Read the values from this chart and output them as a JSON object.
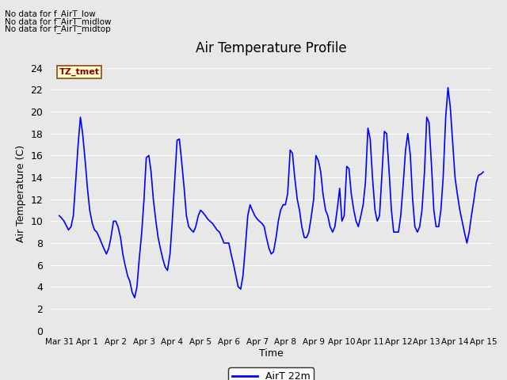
{
  "title": "Air Temperature Profile",
  "xlabel": "Time",
  "ylabel": "Air Temperature (C)",
  "legend_label": "AirT 22m",
  "line_color": "#0000FF",
  "background_color": "#E8E8E8",
  "ylim": [
    0,
    25
  ],
  "yticks": [
    0,
    2,
    4,
    6,
    8,
    10,
    12,
    14,
    16,
    18,
    20,
    22,
    24
  ],
  "annotation_texts": [
    "No data for f_AirT_low",
    "No data for f_AirT_midlow",
    "No data for f_AirT_midtop"
  ],
  "tz_label": "TZ_tmet",
  "x_data": [
    0.0,
    0.08,
    0.17,
    0.25,
    0.33,
    0.42,
    0.5,
    0.58,
    0.67,
    0.75,
    0.83,
    0.92,
    1.0,
    1.08,
    1.17,
    1.25,
    1.33,
    1.42,
    1.5,
    1.58,
    1.67,
    1.75,
    1.83,
    1.92,
    2.0,
    2.08,
    2.17,
    2.25,
    2.33,
    2.42,
    2.5,
    2.58,
    2.67,
    2.75,
    2.83,
    2.92,
    3.0,
    3.08,
    3.17,
    3.25,
    3.33,
    3.42,
    3.5,
    3.58,
    3.67,
    3.75,
    3.83,
    3.92,
    4.0,
    4.08,
    4.17,
    4.25,
    4.33,
    4.42,
    4.5,
    4.58,
    4.67,
    4.75,
    4.83,
    4.92,
    5.0,
    5.08,
    5.17,
    5.25,
    5.33,
    5.42,
    5.5,
    5.58,
    5.67,
    5.75,
    5.83,
    5.92,
    6.0,
    6.08,
    6.17,
    6.25,
    6.33,
    6.42,
    6.5,
    6.58,
    6.67,
    6.75,
    6.83,
    6.92,
    7.0,
    7.08,
    7.17,
    7.25,
    7.33,
    7.42,
    7.5,
    7.58,
    7.67,
    7.75,
    7.83,
    7.92,
    8.0,
    8.08,
    8.17,
    8.25,
    8.33,
    8.42,
    8.5,
    8.58,
    8.67,
    8.75,
    8.83,
    8.92,
    9.0,
    9.08,
    9.17,
    9.25,
    9.33,
    9.42,
    9.5,
    9.58,
    9.67,
    9.75,
    9.83,
    9.92,
    10.0,
    10.08,
    10.17,
    10.25,
    10.33,
    10.42,
    10.5,
    10.58,
    10.67,
    10.75,
    10.83,
    10.92,
    11.0,
    11.08,
    11.17,
    11.25,
    11.33,
    11.42,
    11.5,
    11.58,
    11.67,
    11.75,
    11.83,
    11.92,
    12.0,
    12.08,
    12.17,
    12.25,
    12.33,
    12.42,
    12.5,
    12.58,
    12.67,
    12.75,
    12.83,
    12.92,
    13.0,
    13.08,
    13.17,
    13.25,
    13.33,
    13.42,
    13.5,
    13.58,
    13.67,
    13.75,
    13.83,
    13.92,
    14.0,
    14.08,
    14.17,
    14.25,
    14.33,
    14.42,
    14.5,
    14.58,
    14.67,
    14.75,
    14.83,
    14.92,
    15.0
  ],
  "y_data": [
    10.5,
    10.3,
    10.0,
    9.6,
    9.2,
    9.5,
    10.5,
    13.5,
    17.0,
    19.5,
    18.0,
    15.5,
    13.0,
    11.0,
    9.8,
    9.2,
    9.0,
    8.5,
    8.0,
    7.5,
    7.0,
    7.5,
    8.5,
    10.0,
    10.0,
    9.5,
    8.5,
    7.0,
    6.0,
    5.0,
    4.5,
    3.5,
    3.0,
    4.0,
    6.5,
    9.0,
    12.0,
    15.8,
    16.0,
    14.5,
    12.0,
    10.0,
    8.5,
    7.5,
    6.5,
    5.8,
    5.5,
    7.0,
    10.0,
    13.5,
    17.4,
    17.5,
    15.5,
    13.0,
    10.5,
    9.5,
    9.2,
    9.0,
    9.5,
    10.5,
    11.0,
    10.8,
    10.5,
    10.2,
    10.0,
    9.8,
    9.5,
    9.2,
    9.0,
    8.5,
    8.0,
    8.0,
    8.0,
    7.0,
    6.0,
    5.0,
    4.0,
    3.8,
    5.0,
    7.5,
    10.5,
    11.5,
    11.0,
    10.5,
    10.2,
    10.0,
    9.8,
    9.5,
    8.5,
    7.5,
    7.0,
    7.2,
    8.5,
    10.0,
    11.0,
    11.5,
    11.5,
    12.5,
    16.5,
    16.2,
    14.0,
    12.0,
    11.0,
    9.5,
    8.5,
    8.5,
    9.0,
    10.5,
    12.0,
    16.0,
    15.5,
    14.5,
    12.5,
    11.0,
    10.5,
    9.5,
    9.0,
    9.5,
    11.0,
    13.0,
    10.0,
    10.5,
    15.0,
    14.8,
    12.5,
    11.0,
    10.0,
    9.5,
    10.5,
    11.5,
    13.5,
    18.5,
    17.5,
    14.0,
    11.0,
    10.0,
    10.5,
    14.5,
    18.2,
    18.0,
    14.5,
    11.0,
    9.0,
    9.0,
    9.0,
    10.5,
    13.5,
    16.5,
    18.0,
    16.0,
    12.0,
    9.5,
    9.0,
    9.5,
    11.0,
    14.5,
    19.5,
    19.0,
    15.0,
    11.0,
    9.5,
    9.5,
    11.0,
    14.0,
    19.5,
    22.2,
    20.5,
    17.0,
    14.0,
    12.5,
    11.0,
    10.0,
    9.0,
    8.0,
    9.0,
    10.5,
    12.0,
    13.5,
    14.2,
    14.3,
    14.5
  ],
  "xtick_positions": [
    0,
    1,
    2,
    3,
    4,
    5,
    6,
    7,
    8,
    9,
    10,
    11,
    12,
    13,
    14,
    15
  ],
  "xtick_labels": [
    "Mar 31",
    "Apr 1",
    "Apr 2",
    "Apr 3",
    "Apr 4",
    "Apr 5",
    "Apr 6",
    "Apr 7",
    "Apr 8",
    "Apr 9",
    "Apr 10",
    "Apr 11",
    "Apr 12",
    "Apr 13",
    "Apr 14",
    "Apr 15"
  ]
}
